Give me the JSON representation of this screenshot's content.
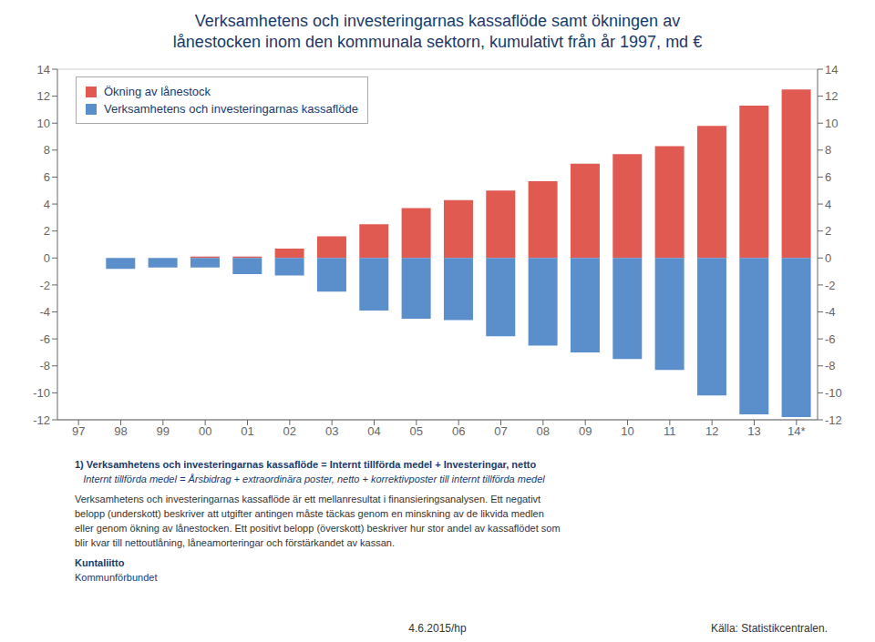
{
  "chart_data": {
    "type": "bar",
    "title": "Verksamhetens och investeringarnas kassaflöde samt ökningen av\nlånestocken inom den kommunala sektorn, kumulativt från år 1997, md €",
    "categories": [
      "97",
      "98",
      "99",
      "00",
      "01",
      "02",
      "03",
      "04",
      "05",
      "06",
      "07",
      "08",
      "09",
      "10",
      "11",
      "12",
      "13",
      "14*"
    ],
    "series": [
      {
        "name": "Ökning av lånestock",
        "color": "#E05A52",
        "values": [
          0.0,
          0.0,
          0.0,
          0.1,
          0.1,
          0.7,
          1.6,
          2.5,
          3.7,
          4.3,
          5.0,
          5.7,
          7.0,
          7.7,
          8.3,
          9.8,
          11.3,
          12.5
        ]
      },
      {
        "name": "Verksamhetens och investeringarnas kassaflöde",
        "color": "#5B8FCC",
        "values": [
          0.0,
          -0.8,
          -0.7,
          -0.7,
          -1.2,
          -1.3,
          -2.5,
          -3.9,
          -4.5,
          -4.6,
          -5.8,
          -6.5,
          -7.0,
          -7.5,
          -8.3,
          -10.2,
          -11.6,
          -11.8
        ]
      }
    ],
    "stacked": true,
    "ylim": [
      -12,
      14
    ],
    "yticks": [
      -12,
      -10,
      -8,
      -6,
      -4,
      -2,
      0,
      2,
      4,
      6,
      8,
      10,
      12,
      14
    ],
    "y2lim": [
      -12,
      14
    ],
    "y2ticks": [
      -12,
      -10,
      -8,
      -6,
      -4,
      -2,
      0,
      2,
      4,
      6,
      8,
      10,
      12,
      14
    ],
    "grid": true,
    "legend": "upper left",
    "annotations": [
      "1) Verksamhetens och investeringarnas kassaflöde = Internt tillförda medel + Investeringar, netto",
      "   Internt tillförda medel = Årsbidrag + extraordinära poster, netto + korrektivposter till internt tillförda medel",
      "Verksamhetens och investeringarnas kassaflöde är ett mellanresultat i finansieringsanalysen. Ett negativt",
      "belopp (underskott) beskriver att utgifter antingen måste täckas genom en minskning av de likvida medlen",
      "eller genom ökning av lånestocken. Ett positivt belopp (överskott) beskriver hur stor andel av kassaflödet som",
      "blir kvar till nettoutlåning, låneamorteringar och förstärkandet av kassan.",
      "Kuntaliitto",
      "Kommunförbundet",
      "4.6.2015/hp",
      "Källa: Statistikcentralen."
    ]
  }
}
